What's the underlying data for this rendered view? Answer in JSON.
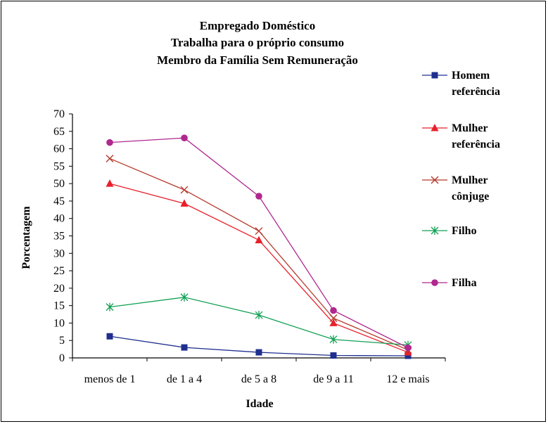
{
  "chart_data": {
    "type": "line",
    "title": [
      "Empregado Doméstico",
      "Trabalha para o próprio consumo",
      "Membro da Família Sem Remuneração"
    ],
    "xlabel": "Idade",
    "ylabel": "Porcentagem",
    "categories": [
      "menos de 1",
      "de 1 a 4",
      "de 5 a 8",
      "de 9 a 11",
      "12 e mais"
    ],
    "ylim": [
      0,
      70
    ],
    "yticks": [
      0,
      5,
      10,
      15,
      20,
      25,
      30,
      35,
      40,
      45,
      50,
      55,
      60,
      65,
      70
    ],
    "grid": false,
    "legend_position": "right",
    "series": [
      {
        "name": [
          "Homem",
          "referência"
        ],
        "color": "#1f2f8f",
        "marker": "square",
        "values": [
          6.2,
          3.0,
          1.6,
          0.7,
          0.6
        ]
      },
      {
        "name": [
          "Mulher",
          "referência"
        ],
        "color": "#e8202a",
        "marker": "triangle",
        "values": [
          50.0,
          44.3,
          33.8,
          10.0,
          1.6
        ]
      },
      {
        "name": [
          "Mulher",
          "cônjuge"
        ],
        "color": "#b5392c",
        "marker": "x",
        "values": [
          57.2,
          48.2,
          36.4,
          11.4,
          2.3
        ]
      },
      {
        "name": [
          "Filho"
        ],
        "color": "#12a053",
        "marker": "asterisk",
        "values": [
          14.6,
          17.4,
          12.3,
          5.3,
          3.7
        ]
      },
      {
        "name": [
          "Filha"
        ],
        "color": "#b0288f",
        "marker": "circle",
        "values": [
          61.8,
          63.1,
          46.4,
          13.6,
          2.9
        ]
      }
    ]
  }
}
